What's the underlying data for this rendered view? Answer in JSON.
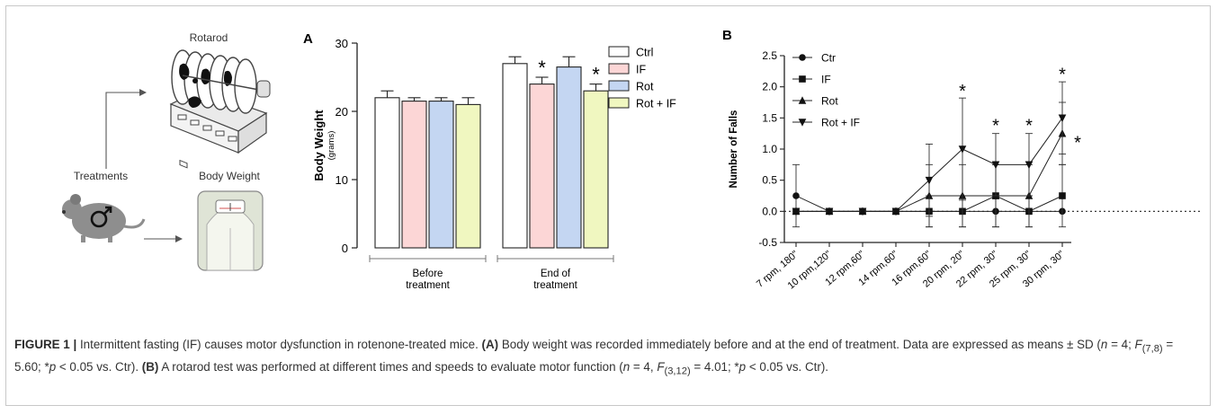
{
  "schematic": {
    "rotarod_label": "Rotarod",
    "treatments_label": "Treatments",
    "body_weight_label": "Body Weight"
  },
  "chart_data": [
    {
      "panel_label": "A",
      "type": "bar",
      "ylabel": "Body Weight",
      "ylabel_unit": "(grams)",
      "ylim": [
        0,
        30
      ],
      "yticks": [
        0,
        10,
        20,
        30
      ],
      "groups": [
        "Before treatment",
        "End of treatment"
      ],
      "group_label_lines": [
        [
          "Before",
          "treatment"
        ],
        [
          "End of",
          "treatment"
        ]
      ],
      "series": [
        {
          "name": "Ctrl",
          "color": "#ffffff",
          "values": [
            22,
            27
          ],
          "errors": [
            1,
            1
          ],
          "significant": [
            false,
            false
          ]
        },
        {
          "name": "IF",
          "color": "#fcd6d6",
          "values": [
            21.5,
            24
          ],
          "errors": [
            0.5,
            1
          ],
          "significant": [
            false,
            true
          ]
        },
        {
          "name": "Rot",
          "color": "#c4d6f2",
          "values": [
            21.5,
            26.5
          ],
          "errors": [
            0.5,
            1.5
          ],
          "significant": [
            false,
            false
          ]
        },
        {
          "name": "Rot + IF",
          "color": "#f0f7c0",
          "values": [
            21,
            23
          ],
          "errors": [
            1,
            1
          ],
          "significant": [
            false,
            true
          ]
        }
      ],
      "significance_marker": "*",
      "legend_position": "right"
    },
    {
      "panel_label": "B",
      "type": "line",
      "ylabel": "Number of Falls",
      "ylim": [
        -0.5,
        2.5
      ],
      "yticks": [
        "-0.5",
        "0.0",
        "0.5",
        "1.0",
        "1.5",
        "2.0",
        "2.5"
      ],
      "categories": [
        "7 rpm, 180\"",
        "10 rpm,120\"",
        "12 rpm,60\"",
        "14 rpm,60\"",
        "16 rpm,60\"",
        "20 rpm, 20\"",
        "22 rpm, 30\"",
        "25 rpm, 30\"",
        "30 rpm, 30\""
      ],
      "series": [
        {
          "name": "Ctr",
          "marker": "circle",
          "values": [
            0.25,
            0,
            0,
            0,
            0,
            0,
            0,
            0,
            0
          ],
          "errors": [
            0.5,
            0,
            0,
            0,
            0,
            0,
            0,
            0,
            0
          ]
        },
        {
          "name": "IF",
          "marker": "square",
          "values": [
            0,
            0,
            0,
            0,
            0,
            0,
            0.25,
            0,
            0.25
          ],
          "errors": [
            0,
            0,
            0,
            0,
            0.25,
            0.25,
            0.5,
            0.25,
            0.5
          ]
        },
        {
          "name": "Rot",
          "marker": "triangle-up",
          "values": [
            0,
            0,
            0,
            0,
            0.25,
            0.25,
            0.25,
            0.25,
            1.25
          ],
          "errors": [
            0,
            0,
            0,
            0,
            0.5,
            0.5,
            0.5,
            0.5,
            0.5
          ]
        },
        {
          "name": "Rot + IF",
          "marker": "triangle-down",
          "values": [
            0,
            0,
            0,
            0,
            0.5,
            1.0,
            0.75,
            0.75,
            1.5
          ],
          "errors": [
            0,
            0,
            0,
            0,
            0.58,
            0.82,
            0.5,
            0.5,
            0.58
          ]
        }
      ],
      "significance_marks": [
        {
          "category_index": 5,
          "y": 1.95
        },
        {
          "category_index": 6,
          "y": 1.4
        },
        {
          "category_index": 7,
          "y": 1.4
        },
        {
          "category_index": 8,
          "y": 2.22
        },
        {
          "category_index": 8,
          "y": 1.12,
          "offset": "right"
        }
      ],
      "significance_marker": "*",
      "zero_line": "dotted",
      "legend_position": "top-left"
    }
  ],
  "caption": {
    "figure_label": "FIGURE 1 |",
    "title": " Intermittent fasting (IF) causes motor dysfunction in rotenone-treated mice. ",
    "a_label": "(A)",
    "a_text_1": " Body weight was recorded immediately before and at the end of treatment. Data are expressed as means ± SD (",
    "n_symbol": "n",
    "a_text_2": " = 4; ",
    "f_symbol": "F",
    "a_f_sub": "(7,8)",
    "a_text_3": " = 5.60; *",
    "p_symbol": "p",
    "a_text_4": " < 0.05 vs. Ctr). ",
    "b_label": "(B)",
    "b_text_1": " A rotarod test was performed at different times and speeds to evaluate motor function (",
    "b_text_2": " = 4, ",
    "b_f_sub": "(3,12)",
    "b_text_3": " = 4.01; *",
    "b_text_4": " < 0.05 vs. Ctr)."
  }
}
